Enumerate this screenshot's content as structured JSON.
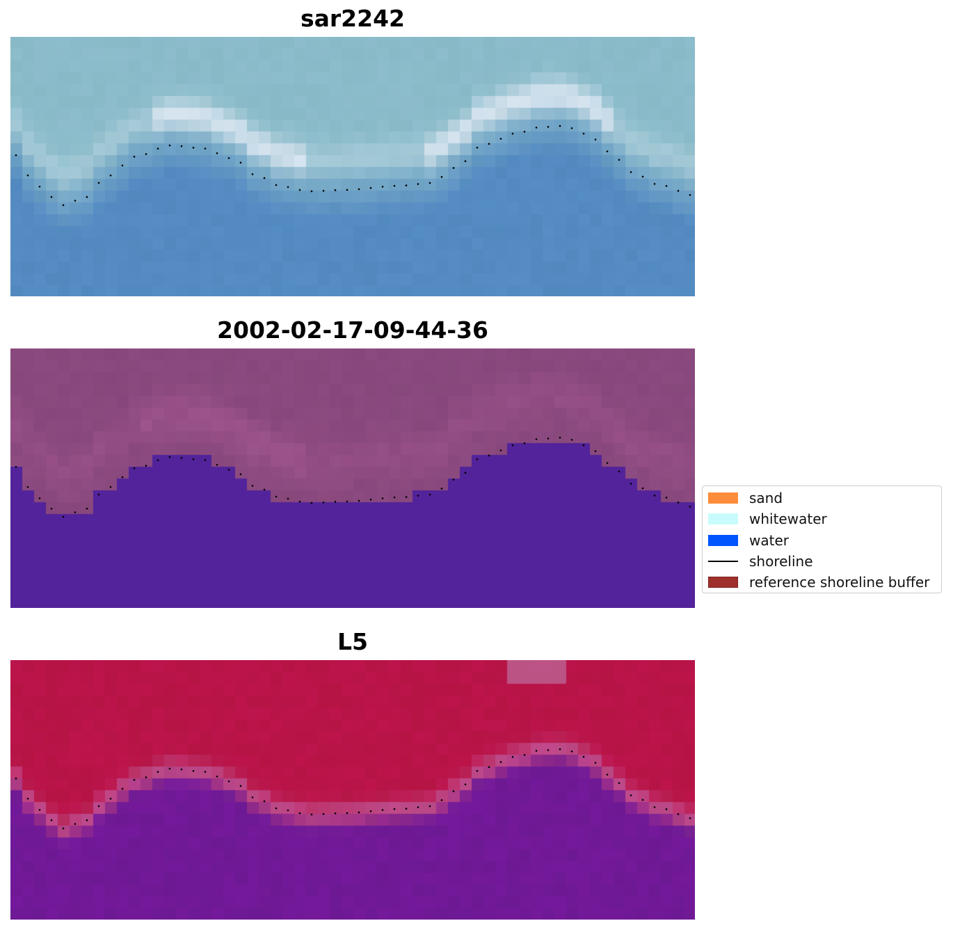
{
  "panels": [
    {
      "title": "sar2242",
      "style": "rgb"
    },
    {
      "title": "2002-02-17-09-44-36",
      "style": "classified"
    },
    {
      "title": "L5",
      "style": "index"
    }
  ],
  "legend": {
    "items": [
      {
        "label": "sand",
        "color": "#ff8c3a",
        "kind": "patch"
      },
      {
        "label": "whitewater",
        "color": "#c8fcfc",
        "kind": "patch"
      },
      {
        "label": "water",
        "color": "#0055ff",
        "kind": "patch"
      },
      {
        "label": "shoreline",
        "color": "#000000",
        "kind": "line"
      },
      {
        "label": "reference shoreline buffer",
        "color": "#a0302c",
        "kind": "patch"
      }
    ]
  },
  "colors": {
    "classified_water": "#52239a",
    "classified_land": "#8c4b80",
    "index_land": "#c0143c",
    "index_water": "#6e1a96",
    "rgb_water": "#4f86bf",
    "rgb_land": "#8fbfc8"
  }
}
